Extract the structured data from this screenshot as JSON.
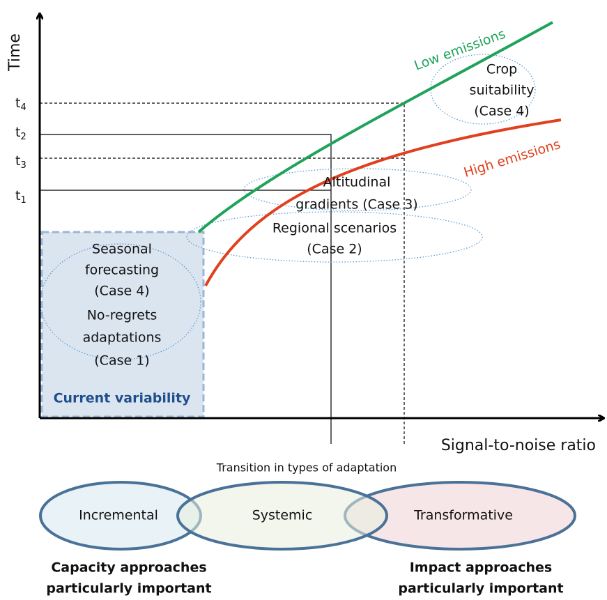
{
  "axes": {
    "y_label": "Time",
    "x_label": "Signal-to-noise ratio"
  },
  "time_marks": [
    {
      "label": "t",
      "subscript": "4"
    },
    {
      "label": "t",
      "subscript": "2"
    },
    {
      "label": "t",
      "subscript": "3"
    },
    {
      "label": "t",
      "subscript": "1"
    }
  ],
  "curves": {
    "low": "Low emissions",
    "high": "High emissions"
  },
  "regions": {
    "crop": [
      "Crop",
      "suitability",
      "(Case 4)"
    ],
    "altitudinal": [
      "Altitudinal",
      "gradients (Case 3)"
    ],
    "regional": [
      "Regional scenarios",
      "(Case 2)"
    ],
    "seasonal": [
      "Seasonal",
      "forecasting",
      "(Case 4)",
      "No-regrets",
      "adaptations",
      "(Case 1)"
    ],
    "current": "Current variability"
  },
  "transition": {
    "title": "Transition in types of adaptation",
    "types": [
      "Incremental",
      "Systemic",
      "Transformative"
    ]
  },
  "notes": {
    "capacity": [
      "Capacity approaches",
      "particularly important"
    ],
    "impact": [
      "Impact approaches",
      "particularly important"
    ]
  }
}
